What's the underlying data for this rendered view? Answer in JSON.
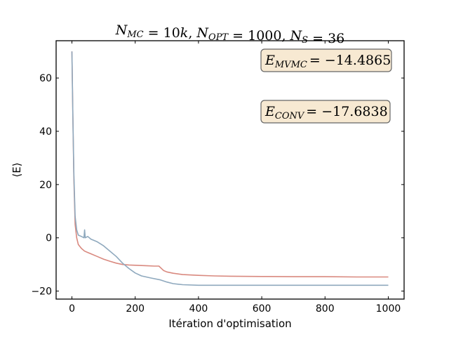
{
  "chart_data": {
    "type": "line",
    "title": "N_MC = 10k, N_OPT = 1000, N_S = 36",
    "title_parts": [
      {
        "t": "N",
        "i": true
      },
      {
        "t": "MC",
        "sub": true
      },
      {
        "t": " = 10",
        "i": false
      },
      {
        "t": "k",
        "i": true
      },
      {
        "t": ", ",
        "i": false
      },
      {
        "t": "N",
        "i": true
      },
      {
        "t": "OPT",
        "sub": true
      },
      {
        "t": " = 1000, ",
        "i": false
      },
      {
        "t": "N",
        "i": true
      },
      {
        "t": "S",
        "sub": true
      },
      {
        "t": " = 36",
        "i": false
      }
    ],
    "xlabel": "Itération d'optimisation",
    "ylabel": "⟨E⟩",
    "xlim": [
      -50,
      1050
    ],
    "ylim": [
      -23,
      74
    ],
    "xticks": [
      0,
      200,
      400,
      600,
      800,
      1000
    ],
    "yticks": [
      -20,
      0,
      20,
      40,
      60
    ],
    "grid": false,
    "annotations": [
      {
        "label": "E_MVMC = −14.4865",
        "sub": "MVMC",
        "value": "= −14.4865",
        "color": "#f7e9d2"
      },
      {
        "label": "E_CONV = −17.6838",
        "sub": "CONV",
        "value": "= −17.6838",
        "color": "#f7e9d2"
      }
    ],
    "series": [
      {
        "color": "#d9897f",
        "x": [
          0,
          3,
          6,
          10,
          15,
          20,
          30,
          40,
          50,
          60,
          80,
          100,
          120,
          140,
          160,
          180,
          200,
          220,
          240,
          260,
          275,
          280,
          290,
          300,
          320,
          350,
          400,
          450,
          500,
          600,
          700,
          800,
          900,
          1000
        ],
        "y": [
          70,
          45,
          22,
          5,
          0,
          -2.5,
          -4,
          -5,
          -5.5,
          -6,
          -7,
          -8,
          -8.8,
          -9.5,
          -10,
          -10.2,
          -10.3,
          -10.4,
          -10.5,
          -10.6,
          -10.6,
          -11.2,
          -12.3,
          -12.8,
          -13.3,
          -13.8,
          -14.1,
          -14.3,
          -14.4,
          -14.5,
          -14.6,
          -14.6,
          -14.7,
          -14.7
        ]
      },
      {
        "color": "#8fa9be",
        "x": [
          0,
          3,
          6,
          10,
          15,
          20,
          30,
          38,
          40,
          42,
          50,
          60,
          80,
          100,
          120,
          140,
          160,
          180,
          200,
          220,
          250,
          280,
          300,
          320,
          350,
          400,
          500,
          600,
          700,
          800,
          900,
          1000
        ],
        "y": [
          70,
          45,
          24,
          8,
          3,
          1,
          0.5,
          0,
          3,
          0,
          0.5,
          -0.5,
          -1.5,
          -3,
          -5,
          -7,
          -9.5,
          -11.5,
          -13.2,
          -14.3,
          -15.1,
          -15.8,
          -16.6,
          -17.2,
          -17.6,
          -17.8,
          -17.8,
          -17.8,
          -17.8,
          -17.8,
          -17.8,
          -17.8
        ]
      }
    ]
  }
}
